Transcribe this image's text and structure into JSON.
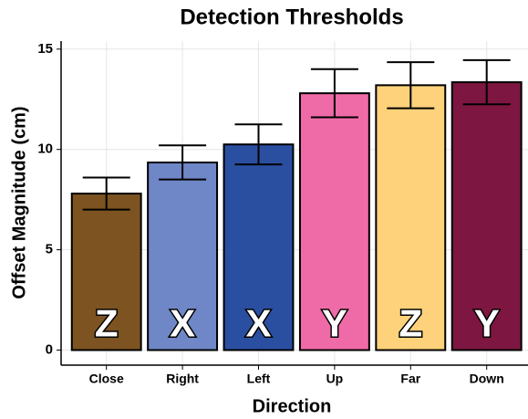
{
  "chart_data": {
    "type": "bar",
    "title": "Detection Thresholds",
    "x_label": "Direction",
    "y_label": "Offset Magnitude (cm)",
    "categories": [
      "Close",
      "Right",
      "Left",
      "Up",
      "Far",
      "Down"
    ],
    "values": [
      7.8,
      9.35,
      10.25,
      12.8,
      13.2,
      13.35
    ],
    "errors": [
      0.8,
      0.85,
      1.0,
      1.2,
      1.15,
      1.1
    ],
    "bar_labels": [
      "Z",
      "X",
      "X",
      "Y",
      "Z",
      "Y"
    ],
    "colors": [
      "#7c5321",
      "#6f87c6",
      "#2b4fa0",
      "#ef6ba8",
      "#fdd27a",
      "#7d1640"
    ],
    "ylim": [
      -0.75,
      15.4
    ],
    "yticks": [
      0,
      5,
      10,
      15
    ],
    "grid": true
  }
}
